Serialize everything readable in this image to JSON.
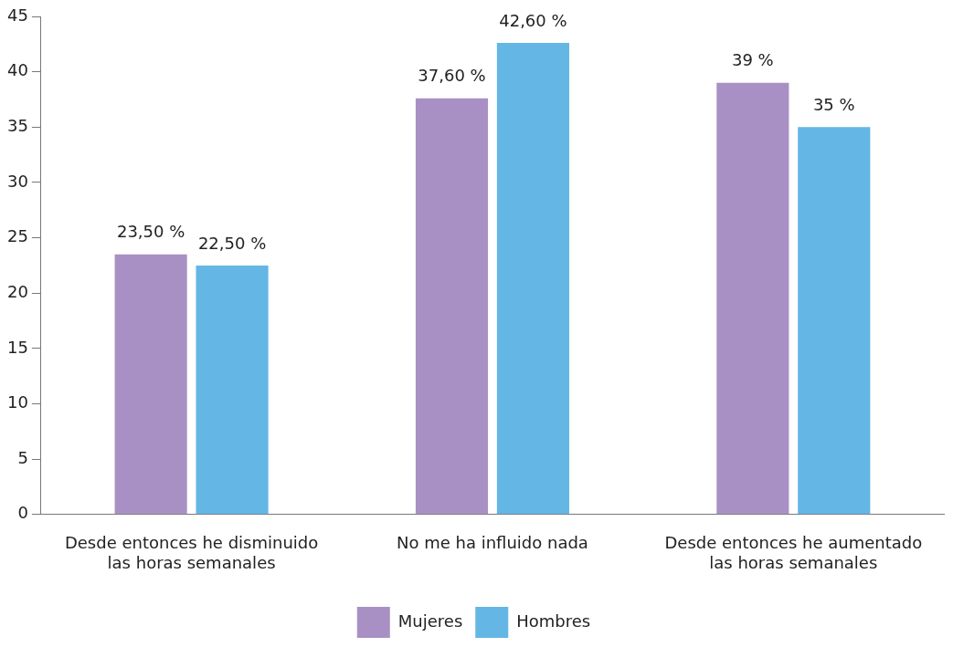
{
  "chart_data": {
    "type": "bar",
    "categories": [
      "Desde entonces he disminuido las horas semanales",
      "No me ha influido nada",
      "Desde entonces he aumentado las horas semanales"
    ],
    "series": [
      {
        "name": "Mujeres",
        "color": "#a990c4",
        "values": [
          23.5,
          37.6,
          39
        ],
        "value_labels": [
          "23,50 %",
          "37,60 %",
          "39 %"
        ]
      },
      {
        "name": "Hombres",
        "color": "#64b6e5",
        "values": [
          22.5,
          42.6,
          35
        ],
        "value_labels": [
          "22,50 %",
          "42,60 %",
          "35 %"
        ]
      }
    ],
    "ylim": [
      0,
      45
    ],
    "yticks": [
      0,
      5,
      10,
      15,
      20,
      25,
      30,
      35,
      40,
      45
    ],
    "grid": false,
    "legend": "bottom"
  }
}
